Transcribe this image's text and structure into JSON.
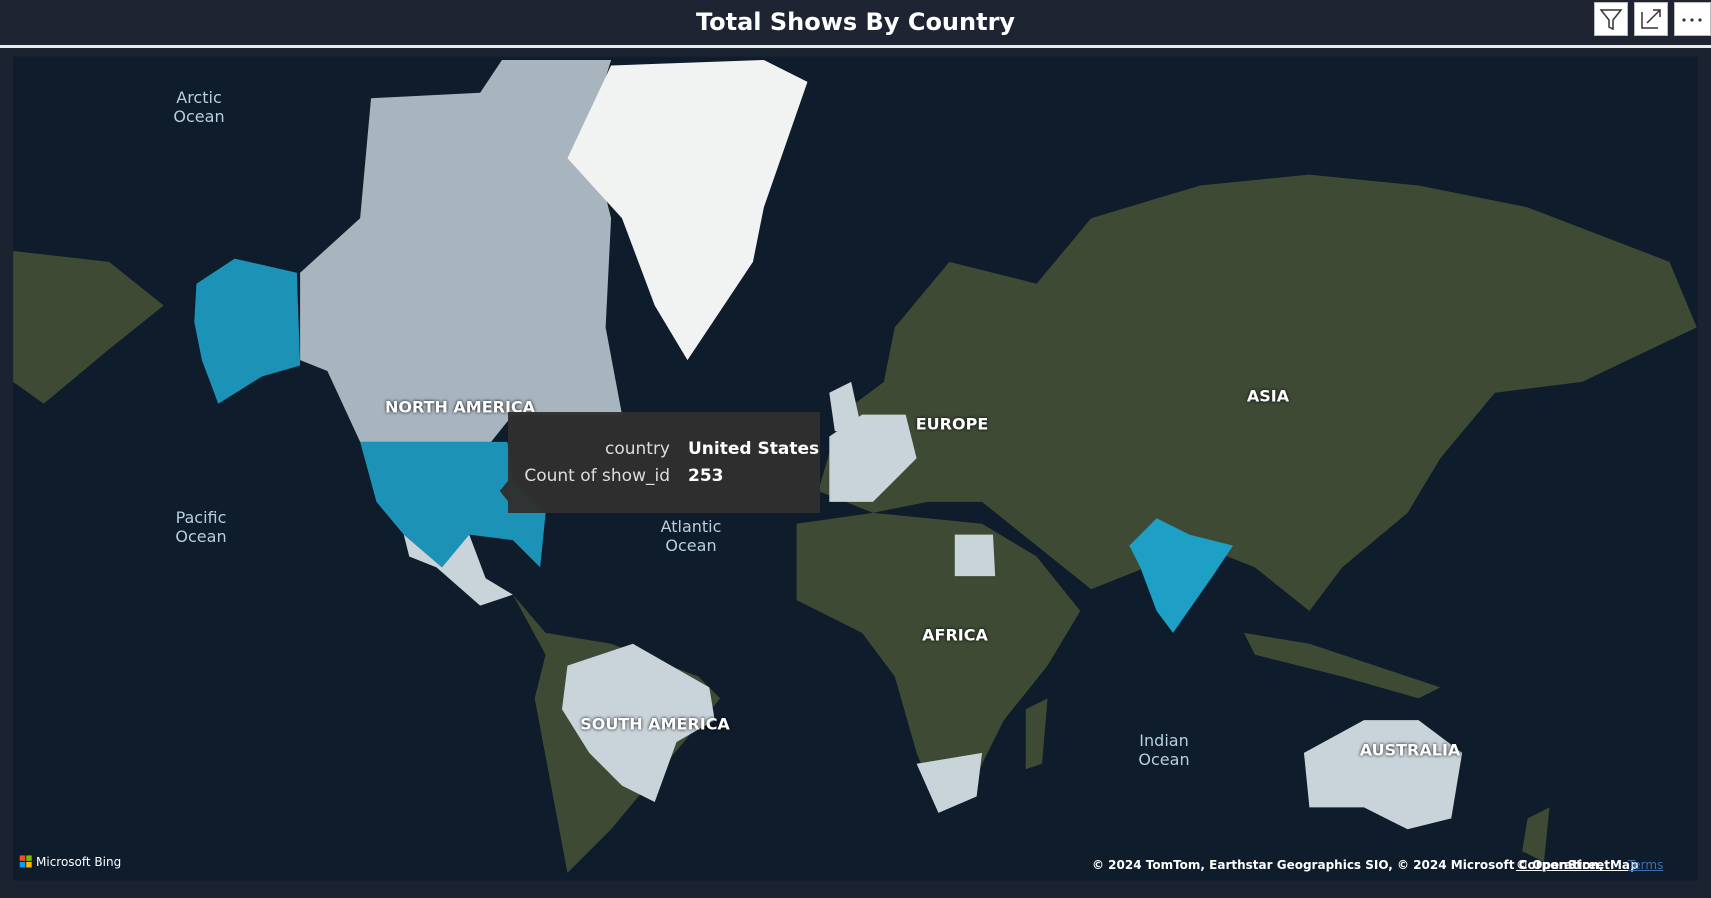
{
  "header": {
    "title": "Total Shows By Country"
  },
  "map": {
    "labels": [
      "Arctic Ocean",
      "NORTH AMERICA",
      "Pacific Ocean",
      "Atlantic Ocean",
      "EUROPE",
      "ASIA",
      "AFRICA",
      "SOUTH AMERICA",
      "Indian Ocean",
      "AUSTRALIA"
    ]
  },
  "tooltip": {
    "rows": [
      {
        "label": "country",
        "value": "United States"
      },
      {
        "label": "Count of show_id",
        "value": 253
      }
    ]
  },
  "footer": {
    "logo": "Microsoft Bing",
    "attribution": "© 2024 TomTom, Earthstar Geographics SIO, © 2024 Microsoft Corporation,",
    "link": "© OpenStreetMap",
    "terms": "Terms"
  }
}
